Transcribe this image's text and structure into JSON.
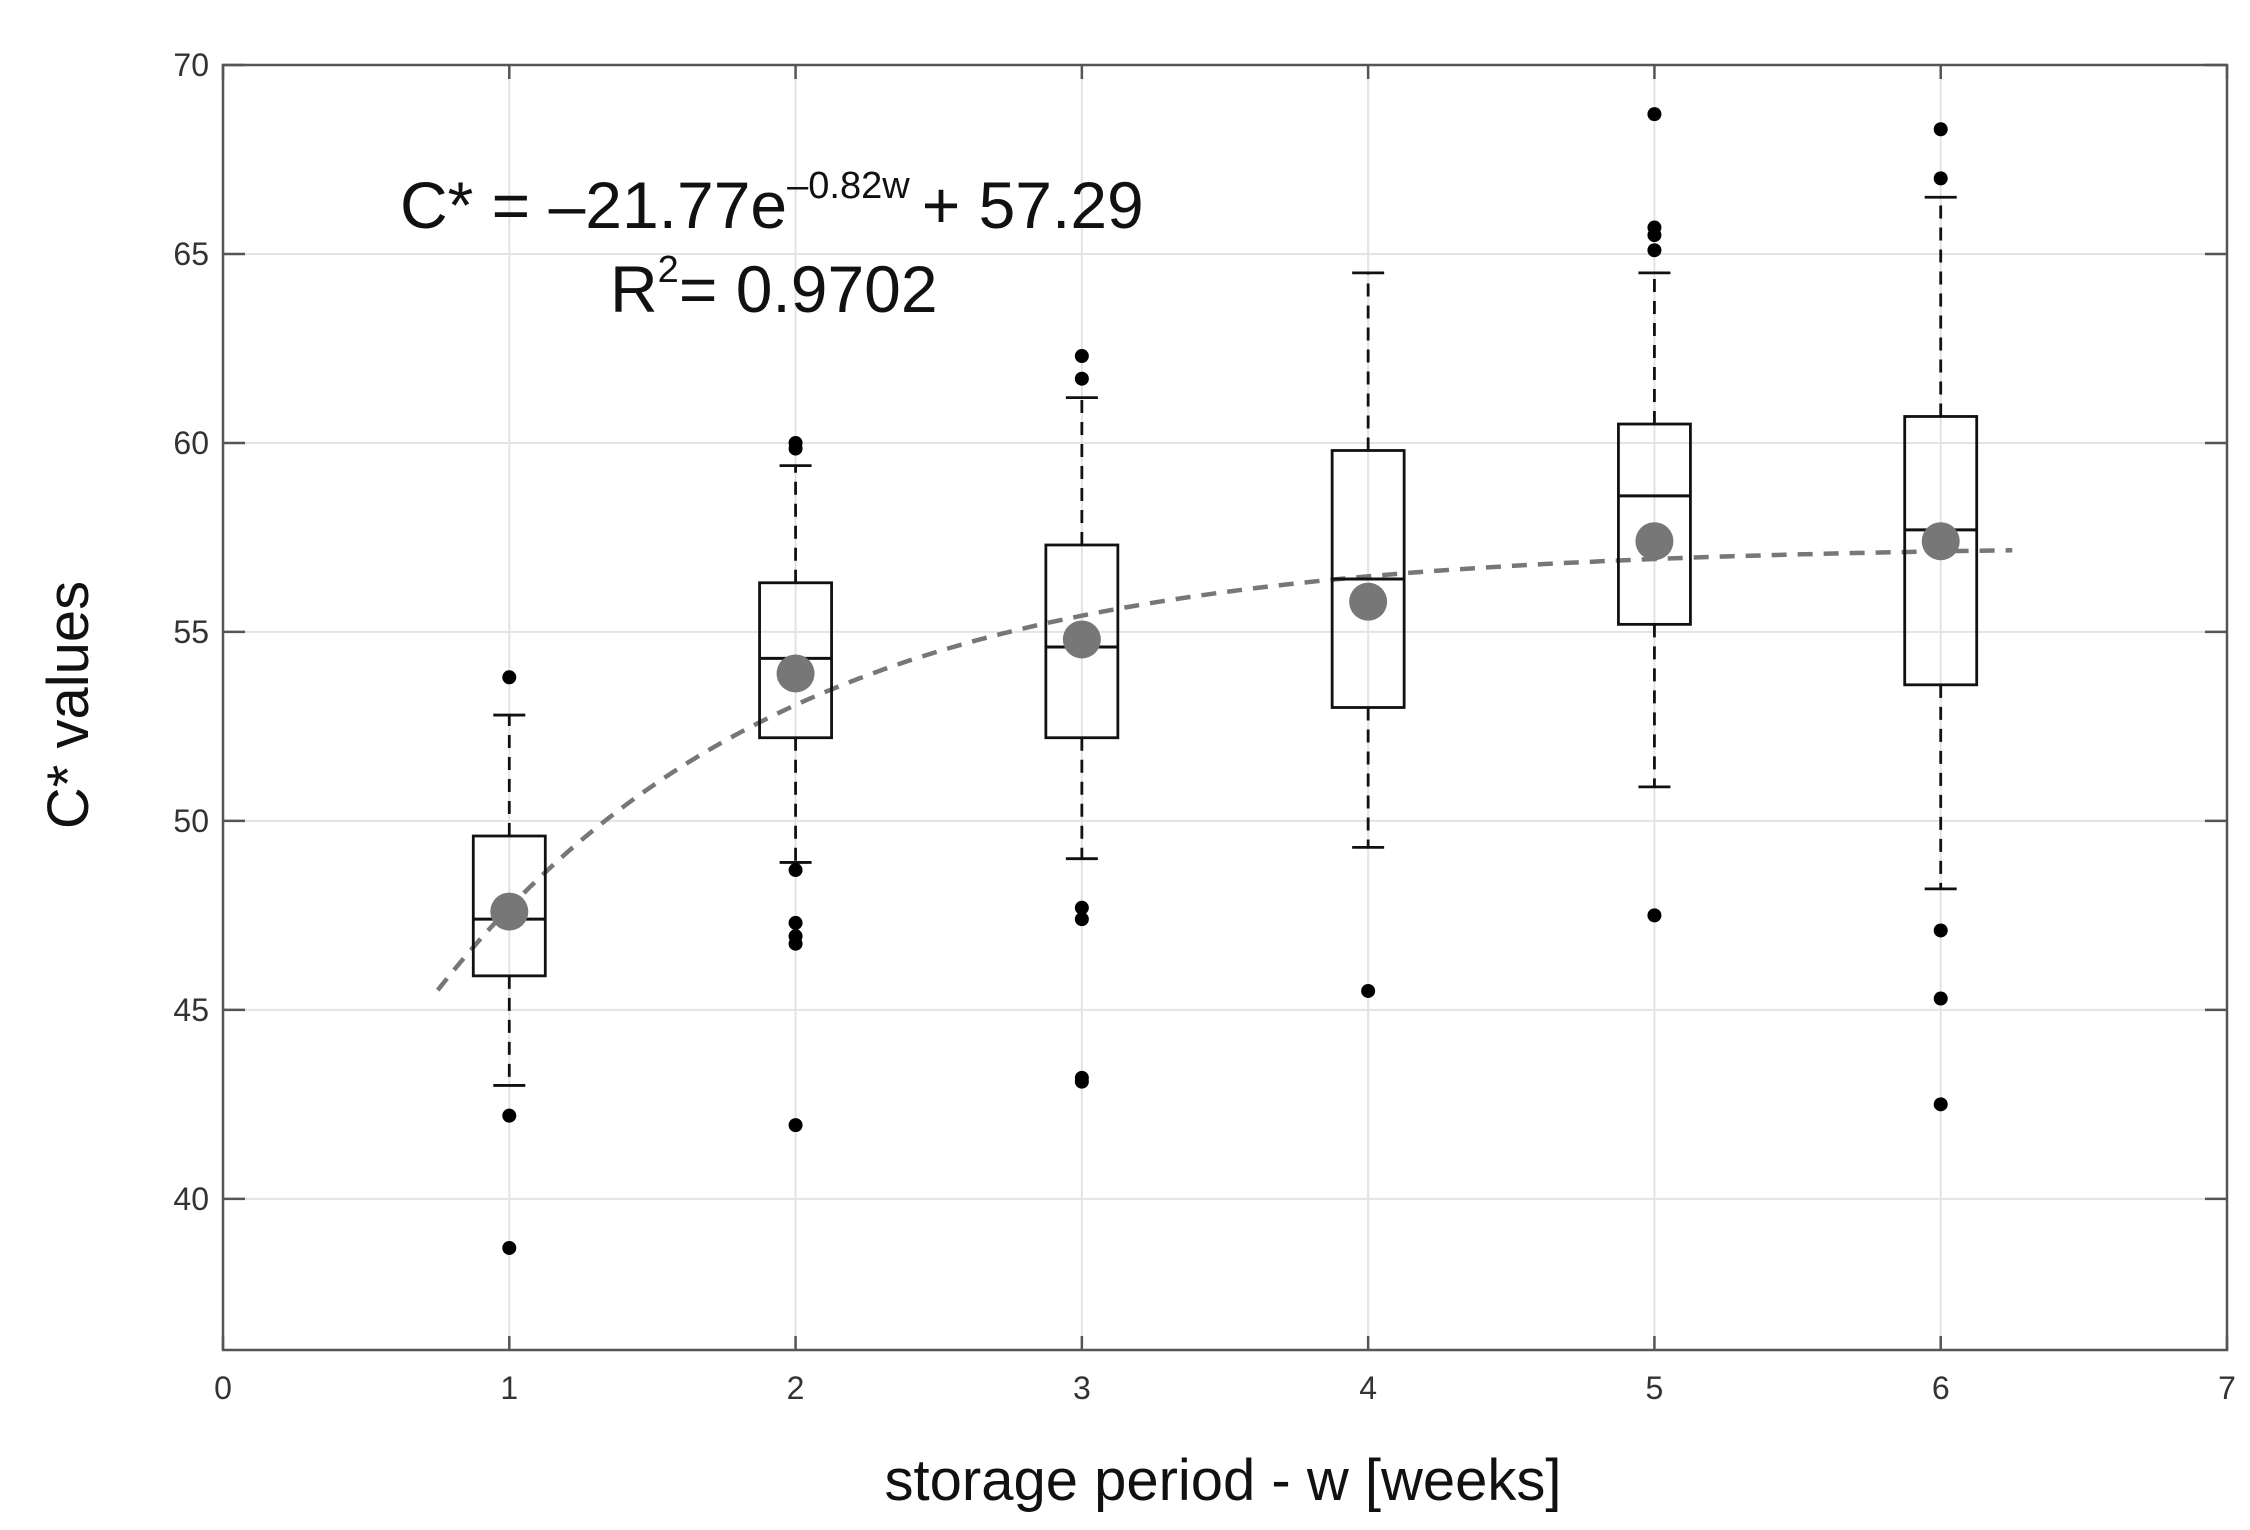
{
  "chart_data": {
    "type": "box",
    "xlabel": "storage period - w [weeks]",
    "ylabel": "C* values",
    "xlim": [
      0,
      7
    ],
    "ylim": [
      36,
      70
    ],
    "x_ticks": [
      0,
      1,
      2,
      3,
      4,
      5,
      6,
      7
    ],
    "y_ticks": [
      40,
      45,
      50,
      55,
      60,
      65,
      70
    ],
    "grid": true,
    "equation": {
      "lhs": "C* = –21.77e",
      "exponent": "–0.82w",
      "rhs": "+ 57.29",
      "r2_prefix": "R",
      "r2_sup": "2",
      "r2_value": "= 0.9702"
    },
    "fit": {
      "a": -21.77,
      "b": -0.82,
      "c": 57.29,
      "x_range": [
        0.75,
        6.25
      ]
    },
    "boxes": [
      {
        "week": 1,
        "q1": 45.9,
        "median": 47.4,
        "q3": 49.6,
        "whisker_low": 43.0,
        "whisker_high": 52.8,
        "mean": 47.6,
        "outliers": [
          53.8,
          42.2,
          38.7
        ]
      },
      {
        "week": 2,
        "q1": 52.2,
        "median": 54.3,
        "q3": 56.3,
        "whisker_low": 48.9,
        "whisker_high": 59.4,
        "mean": 53.9,
        "outliers": [
          60.0,
          59.85,
          48.7,
          47.3,
          46.95,
          46.75,
          41.95
        ]
      },
      {
        "week": 3,
        "q1": 52.2,
        "median": 54.6,
        "q3": 57.3,
        "whisker_low": 49.0,
        "whisker_high": 61.2,
        "mean": 54.8,
        "outliers": [
          62.3,
          61.7,
          47.7,
          47.4,
          43.2,
          43.1
        ]
      },
      {
        "week": 4,
        "q1": 53.0,
        "median": 56.4,
        "q3": 59.8,
        "whisker_low": 49.3,
        "whisker_high": 64.5,
        "mean": 55.8,
        "outliers": [
          45.5
        ]
      },
      {
        "week": 5,
        "q1": 55.2,
        "median": 58.6,
        "q3": 60.5,
        "whisker_low": 50.9,
        "whisker_high": 64.5,
        "mean": 57.4,
        "outliers": [
          68.7,
          65.7,
          65.5,
          65.1,
          47.5
        ]
      },
      {
        "week": 6,
        "q1": 53.6,
        "median": 57.7,
        "q3": 60.7,
        "whisker_low": 48.2,
        "whisker_high": 66.5,
        "mean": 57.4,
        "outliers": [
          68.3,
          67.0,
          47.1,
          45.3,
          42.5
        ]
      }
    ],
    "colors": {
      "mean": "#777777",
      "fit": "#777777",
      "box": "#111111",
      "grid": "#e3e3e3",
      "axis": "#555555"
    }
  }
}
